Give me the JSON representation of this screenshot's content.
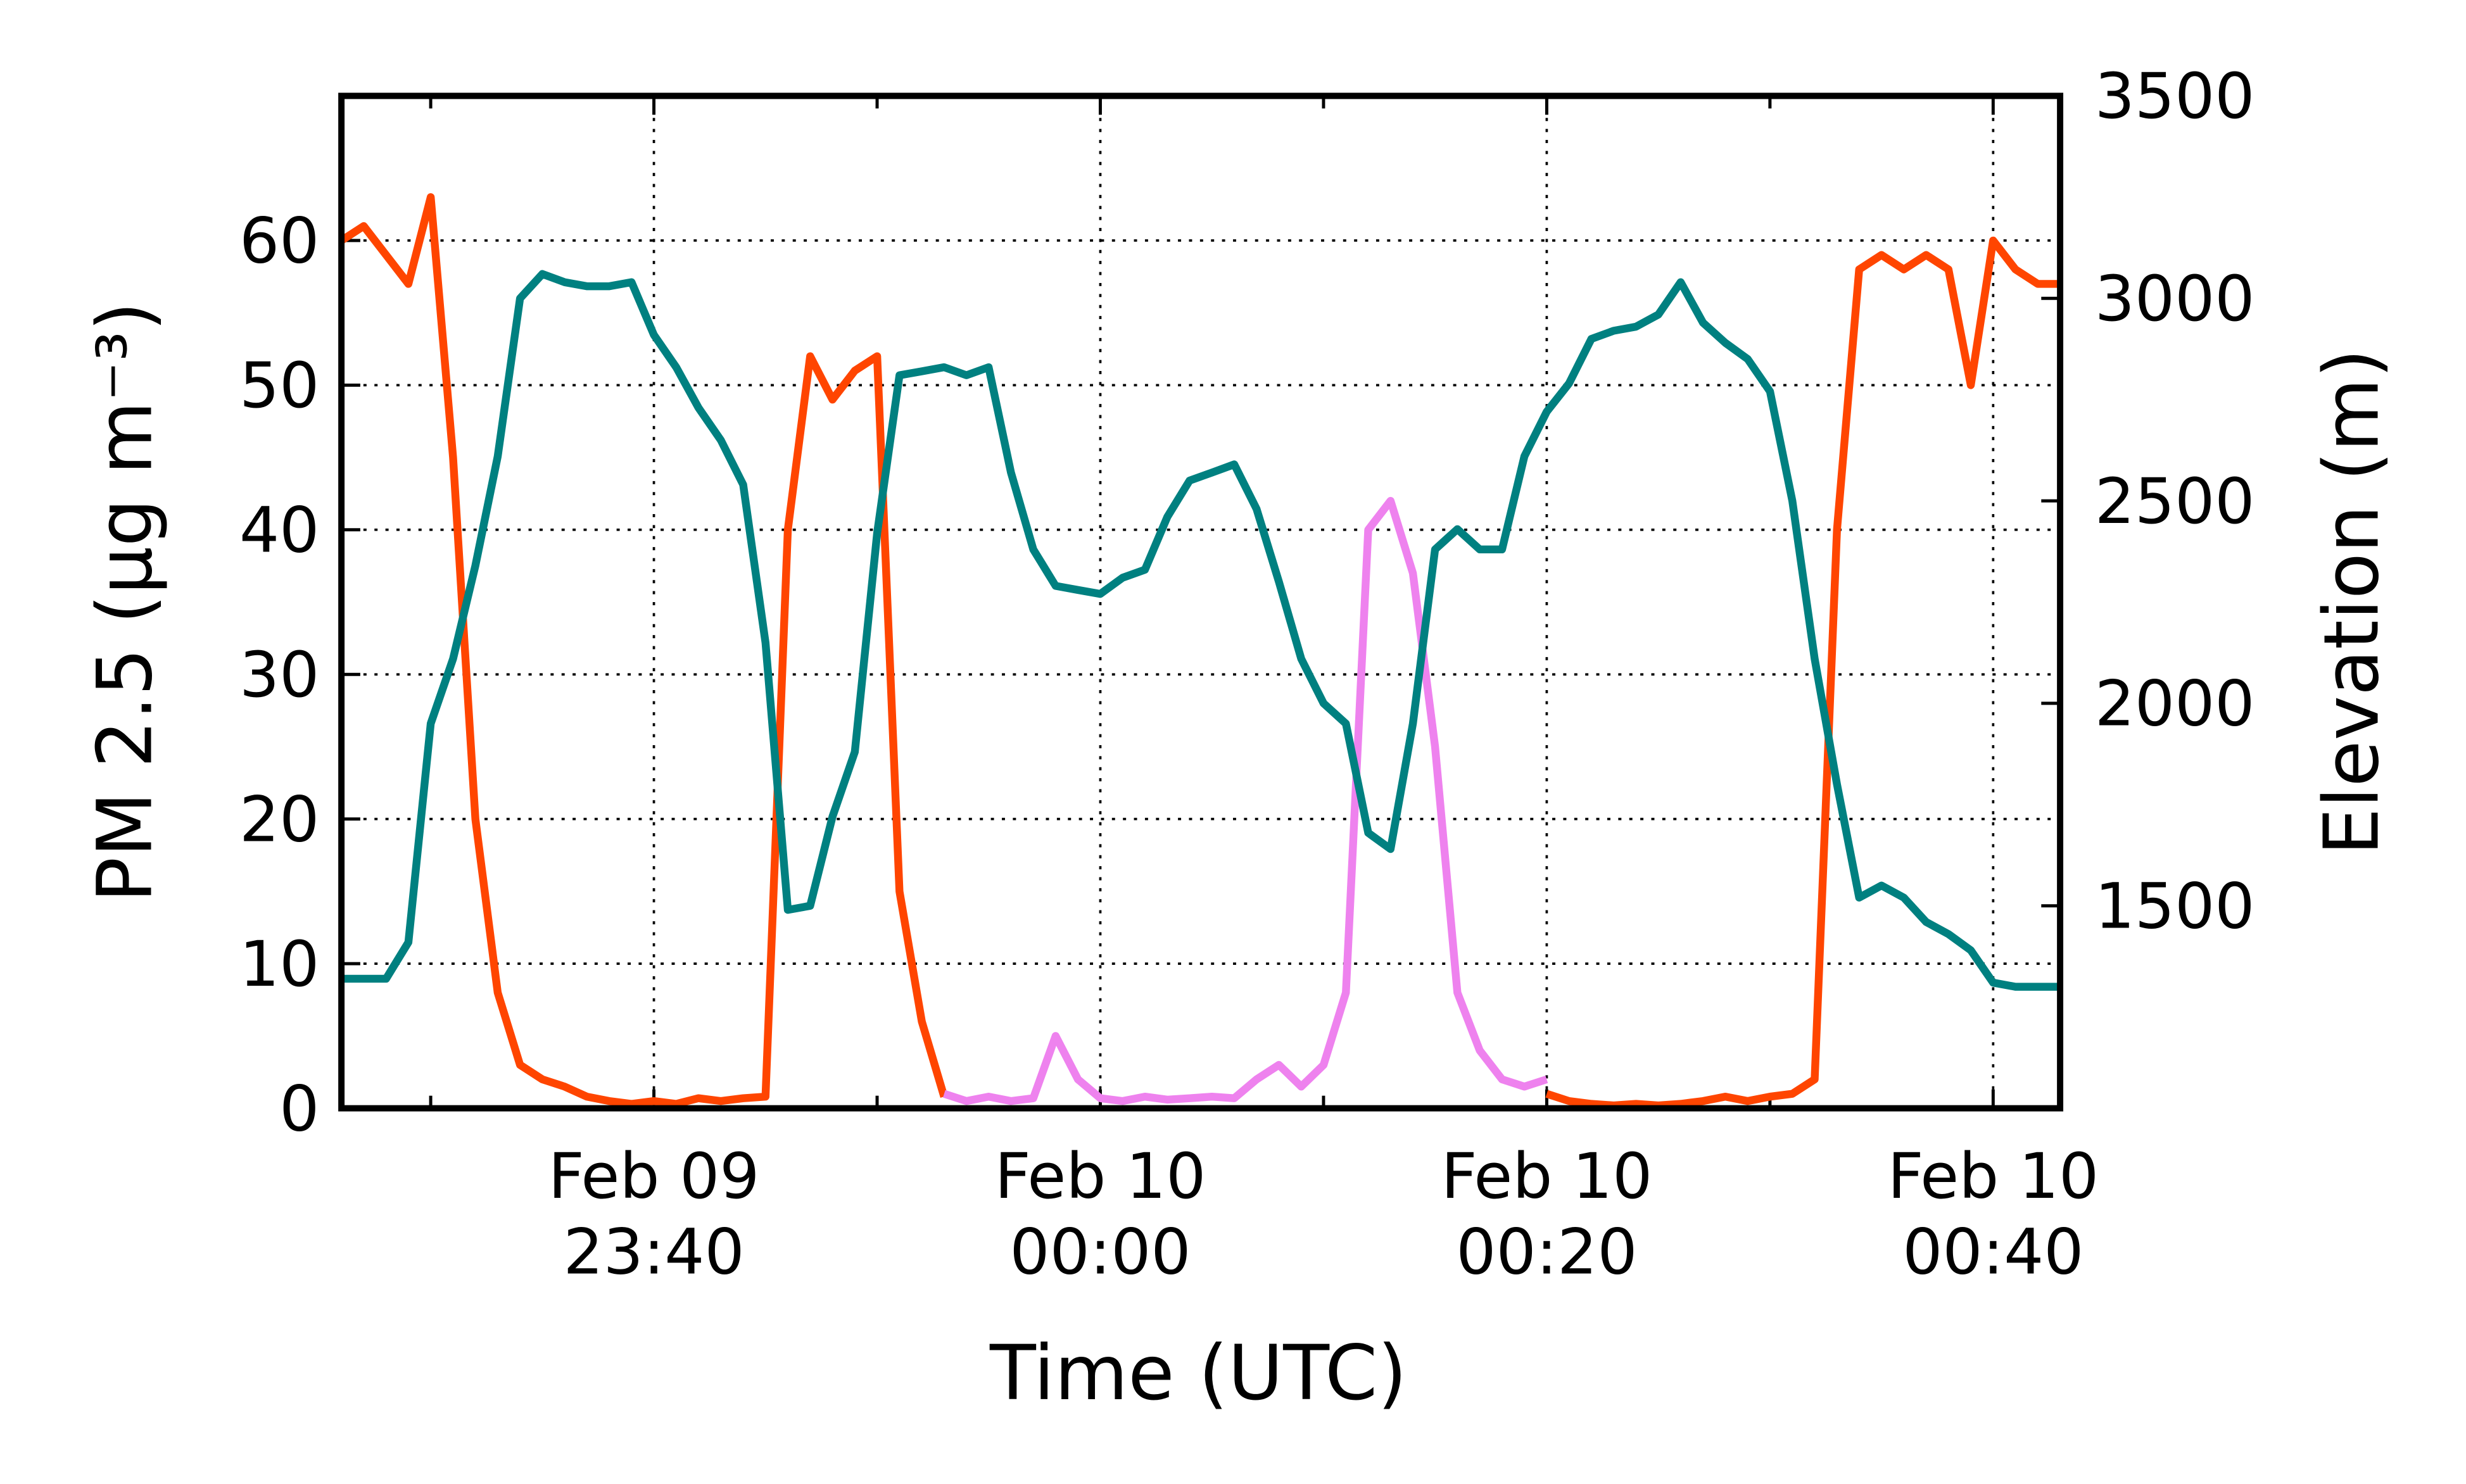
{
  "chart_data": {
    "type": "line",
    "xlabel": "Time (UTC)",
    "ylabel": "PM 2.5 (μg m⁻³)",
    "y2label": "Elevation (m)",
    "x": [
      "Feb 09 23:26",
      "Feb 09 23:27",
      "Feb 09 23:28",
      "Feb 09 23:29",
      "Feb 09 23:30",
      "Feb 09 23:31",
      "Feb 09 23:32",
      "Feb 09 23:33",
      "Feb 09 23:34",
      "Feb 09 23:35",
      "Feb 09 23:36",
      "Feb 09 23:37",
      "Feb 09 23:38",
      "Feb 09 23:39",
      "Feb 09 23:40",
      "Feb 09 23:41",
      "Feb 09 23:42",
      "Feb 09 23:43",
      "Feb 09 23:44",
      "Feb 09 23:45",
      "Feb 09 23:46",
      "Feb 09 23:47",
      "Feb 09 23:48",
      "Feb 09 23:49",
      "Feb 09 23:50",
      "Feb 09 23:51",
      "Feb 09 23:52",
      "Feb 09 23:53",
      "Feb 09 23:54",
      "Feb 09 23:55",
      "Feb 09 23:56",
      "Feb 09 23:57",
      "Feb 09 23:58",
      "Feb 09 23:59",
      "Feb 10 00:00",
      "Feb 10 00:01",
      "Feb 10 00:02",
      "Feb 10 00:03",
      "Feb 10 00:04",
      "Feb 10 00:05",
      "Feb 10 00:06",
      "Feb 10 00:07",
      "Feb 10 00:08",
      "Feb 10 00:09",
      "Feb 10 00:10",
      "Feb 10 00:11",
      "Feb 10 00:12",
      "Feb 10 00:13",
      "Feb 10 00:14",
      "Feb 10 00:15",
      "Feb 10 00:16",
      "Feb 10 00:17",
      "Feb 10 00:18",
      "Feb 10 00:19",
      "Feb 10 00:20",
      "Feb 10 00:21",
      "Feb 10 00:22",
      "Feb 10 00:23",
      "Feb 10 00:24",
      "Feb 10 00:25",
      "Feb 10 00:26",
      "Feb 10 00:27",
      "Feb 10 00:28",
      "Feb 10 00:29",
      "Feb 10 00:30",
      "Feb 10 00:31",
      "Feb 10 00:32",
      "Feb 10 00:33",
      "Feb 10 00:34",
      "Feb 10 00:35",
      "Feb 10 00:36",
      "Feb 10 00:37",
      "Feb 10 00:38",
      "Feb 10 00:39",
      "Feb 10 00:40",
      "Feb 10 00:41",
      "Feb 10 00:42",
      "Feb 10 00:43"
    ],
    "series": [
      {
        "color": "#ff4500",
        "values": [
          60,
          61,
          59,
          57,
          63,
          45,
          20,
          8,
          3,
          2,
          1.5,
          0.8,
          0.5,
          0.3,
          0.5,
          0.3,
          0.7,
          0.5,
          0.7,
          0.8,
          40,
          52,
          49,
          51,
          52,
          15,
          6,
          0.8,
          null,
          null,
          null,
          null,
          null,
          null,
          null,
          null,
          null,
          null,
          null,
          null,
          null,
          null,
          null,
          null,
          null,
          null,
          null,
          null,
          null,
          null,
          null,
          null,
          null,
          null,
          1,
          0.5,
          0.3,
          0.2,
          0.3,
          0.2,
          0.3,
          0.5,
          0.8,
          0.5,
          0.8,
          1,
          2,
          40,
          58,
          59,
          58,
          59,
          58,
          50,
          60,
          58,
          57,
          57
        ]
      },
      {
        "color": "#ee82ee",
        "values": [
          null,
          null,
          null,
          null,
          null,
          null,
          null,
          null,
          null,
          null,
          null,
          null,
          null,
          null,
          null,
          null,
          null,
          null,
          null,
          null,
          null,
          null,
          null,
          null,
          null,
          null,
          null,
          1,
          0.5,
          0.8,
          0.5,
          0.7,
          5,
          2,
          0.7,
          0.5,
          0.8,
          0.6,
          0.7,
          0.8,
          0.7,
          2,
          3,
          1.5,
          3,
          8,
          40,
          42,
          37,
          25,
          8,
          4,
          2,
          1.5,
          2,
          null,
          null,
          null,
          null,
          null,
          null,
          null,
          null,
          null,
          null,
          null,
          null,
          null,
          null,
          null,
          null,
          null,
          null,
          null,
          null,
          null,
          null,
          null
        ]
      },
      {
        "color": "#008080",
        "axis": "y2",
        "values": [
          1320,
          1320,
          1320,
          1410,
          1950,
          2110,
          2340,
          2610,
          3000,
          3060,
          3040,
          3030,
          3030,
          3040,
          2910,
          2830,
          2730,
          2650,
          2540,
          2150,
          1490,
          1500,
          1720,
          1880,
          2420,
          2810,
          2820,
          2830,
          2810,
          2830,
          2570,
          2380,
          2290,
          2280,
          2270,
          2310,
          2330,
          2460,
          2550,
          2570,
          2590,
          2480,
          2300,
          2110,
          2000,
          1950,
          1680,
          1640,
          1950,
          2380,
          2430,
          2380,
          2380,
          2610,
          2720,
          2790,
          2900,
          2920,
          2930,
          2960,
          3040,
          2940,
          2890,
          2850,
          2770,
          2500,
          2110,
          1800,
          1520,
          1550,
          1520,
          1460,
          1430,
          1390,
          1310,
          1300,
          1300,
          1300
        ]
      }
    ],
    "xlim": [
      "Feb 09 23:26",
      "Feb 10 00:43"
    ],
    "xticks": [
      {
        "value": "Feb 09 23:40",
        "label": "Feb 09\n23:40"
      },
      {
        "value": "Feb 10 00:00",
        "label": "Feb 10\n00:00"
      },
      {
        "value": "Feb 10 00:20",
        "label": "Feb 10\n00:20"
      },
      {
        "value": "Feb 10 00:40",
        "label": "Feb 10\n00:40"
      }
    ],
    "xminorticks": [
      "Feb 09 23:30",
      "Feb 09 23:50",
      "Feb 10 00:10",
      "Feb 10 00:30"
    ],
    "ylim": [
      0,
      70
    ],
    "yticks": [
      0,
      10,
      20,
      30,
      40,
      50,
      60
    ],
    "y2lim": [
      1000,
      3500
    ],
    "y2ticks": [
      1500,
      2000,
      2500,
      3000,
      3500
    ],
    "grid": true
  }
}
